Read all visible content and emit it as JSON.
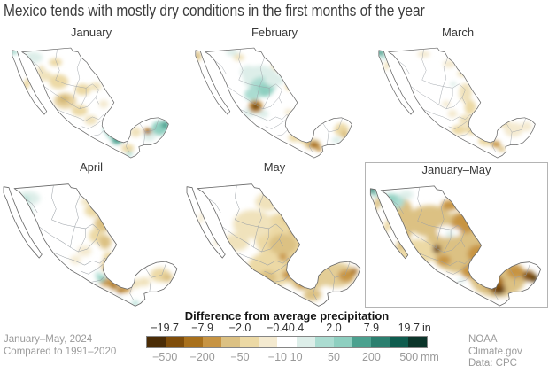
{
  "title": "Mexico tends with mostly dry conditions in the first months of the year",
  "footer": {
    "period": "January–May, 2024",
    "baseline": "Compared to 1991–2020",
    "credit": "NOAA Climate.gov",
    "source": "Data: CPC"
  },
  "legend": {
    "title": "Difference from average precipitation",
    "unit_in": "in",
    "unit_mm": "mm",
    "colors": [
      "#4a2c06",
      "#7f4d0a",
      "#a8701c",
      "#c79443",
      "#dcc183",
      "#ecd9a5",
      "#f4ead0",
      "#ffffff",
      "#ddeee9",
      "#abdcd1",
      "#8ecfc0",
      "#4ba18f",
      "#2b7f6f",
      "#0e5c4e",
      "#0b352a"
    ],
    "ticks": [
      {
        "in": "−19.7",
        "mm": "−500",
        "pct": 6.67
      },
      {
        "in": "−7.9",
        "mm": "−200",
        "pct": 20
      },
      {
        "in": "−2.0",
        "mm": "−50",
        "pct": 33.33
      },
      {
        "in": "−0.4",
        "mm": "−10",
        "pct": 46.67
      },
      {
        "in": "0.4",
        "mm": "10",
        "pct": 53.33
      },
      {
        "in": "2.0",
        "mm": "50",
        "pct": 66.67
      },
      {
        "in": "7.9",
        "mm": "200",
        "pct": 80
      },
      {
        "in": "19.7",
        "mm": "500",
        "pct": 93.33
      }
    ]
  },
  "panels": [
    {
      "label": "January",
      "slug": "january",
      "highlighted": false,
      "blobs": [
        [
          30,
          22,
          12,
          7,
          0,
          "#ddeee9"
        ],
        [
          6,
          15,
          4,
          3,
          0,
          "#8ecfc0"
        ],
        [
          58,
          28,
          8,
          5,
          0,
          "#ecd9a5"
        ],
        [
          45,
          45,
          9,
          6,
          0,
          "#f0e2bb"
        ],
        [
          62,
          52,
          12,
          9,
          0,
          "#ecd9a5"
        ],
        [
          70,
          76,
          14,
          10,
          0,
          "#e8d3a0"
        ],
        [
          68,
          74,
          7,
          5,
          0,
          "#d4b876"
        ],
        [
          92,
          62,
          10,
          7,
          0,
          "#ecd9a5"
        ],
        [
          108,
          58,
          7,
          5,
          0,
          "#f0e2bb"
        ],
        [
          88,
          88,
          10,
          7,
          0,
          "#ecd9a5"
        ],
        [
          102,
          100,
          8,
          6,
          0,
          "#f0e2bb"
        ],
        [
          118,
          80,
          6,
          5,
          0,
          "#f4ead0"
        ],
        [
          22,
          55,
          4,
          9,
          30,
          "#ecd9a5"
        ],
        [
          40,
          38,
          5,
          6,
          0,
          "#f0e2bb"
        ],
        [
          128,
          118,
          6,
          5,
          0,
          "#8ecfc0"
        ],
        [
          135,
          125,
          7,
          5,
          0,
          "#4ba18f"
        ],
        [
          122,
          112,
          5,
          4,
          0,
          "#abdcd1"
        ],
        [
          158,
          115,
          7,
          6,
          0,
          "#f0e2bb"
        ],
        [
          188,
          110,
          10,
          9,
          0,
          "#8ecfc0"
        ],
        [
          195,
          106,
          5,
          5,
          0,
          "#4ba18f"
        ],
        [
          175,
          120,
          8,
          6,
          0,
          "#ddeee9"
        ],
        [
          173,
          114,
          5,
          4,
          0,
          "#a8701c"
        ],
        [
          148,
          135,
          8,
          5,
          0,
          "#ecd9a5"
        ],
        [
          150,
          142,
          4,
          3,
          0,
          "#abdcd1"
        ]
      ]
    },
    {
      "label": "February",
      "slug": "february",
      "highlighted": false,
      "blobs": [
        [
          85,
          48,
          22,
          16,
          0,
          "#ddeee9"
        ],
        [
          88,
          58,
          16,
          12,
          0,
          "#abdcd1"
        ],
        [
          90,
          63,
          10,
          8,
          0,
          "#8ecfc0"
        ],
        [
          75,
          68,
          10,
          8,
          0,
          "#abdcd1"
        ],
        [
          102,
          50,
          12,
          8,
          0,
          "#ddeee9"
        ],
        [
          70,
          40,
          10,
          8,
          0,
          "#ddeee9"
        ],
        [
          50,
          16,
          8,
          4,
          0,
          "#ddeee9"
        ],
        [
          72,
          90,
          8,
          6,
          0,
          "#ddeee9"
        ],
        [
          88,
          92,
          7,
          5,
          0,
          "#ddeee9"
        ],
        [
          79,
          83,
          9,
          8,
          0,
          "#c79443"
        ],
        [
          79,
          83,
          6,
          5,
          0,
          "#a8701c"
        ],
        [
          79,
          83,
          3.5,
          3.5,
          0,
          "#5e3708"
        ],
        [
          7,
          20,
          4,
          6,
          0,
          "#dcc183"
        ],
        [
          108,
          32,
          9,
          6,
          0,
          "#ecd9a5"
        ],
        [
          122,
          58,
          6,
          5,
          0,
          "#ecd9a5"
        ],
        [
          58,
          22,
          7,
          4,
          0,
          "#f0e2bb"
        ],
        [
          120,
          90,
          5,
          4,
          0,
          "#f4ead0"
        ],
        [
          128,
          122,
          8,
          5,
          0,
          "#ecd9a5"
        ],
        [
          140,
          126,
          6,
          4,
          0,
          "#ecd9a5"
        ],
        [
          150,
          130,
          10,
          6,
          0,
          "#dcc183"
        ],
        [
          152,
          131,
          6,
          4,
          0,
          "#a8701c"
        ],
        [
          158,
          136,
          4,
          3,
          0,
          "#c79443"
        ],
        [
          186,
          112,
          9,
          8,
          0,
          "#ecd9a5"
        ],
        [
          190,
          118,
          5,
          5,
          0,
          "#dcc183"
        ],
        [
          180,
          125,
          6,
          4,
          0,
          "#ddeee9"
        ]
      ]
    },
    {
      "label": "March",
      "slug": "march",
      "highlighted": false,
      "blobs": [
        [
          6,
          16,
          5,
          4,
          0,
          "#4ba18f"
        ],
        [
          10,
          21,
          4,
          3,
          0,
          "#abdcd1"
        ],
        [
          14,
          32,
          3,
          6,
          20,
          "#f0e2bb"
        ],
        [
          60,
          18,
          8,
          4,
          0,
          "#f4ead0"
        ],
        [
          92,
          30,
          8,
          5,
          0,
          "#f4ead0"
        ],
        [
          108,
          42,
          6,
          4,
          0,
          "#f0e2bb"
        ],
        [
          112,
          66,
          8,
          12,
          0,
          "#f0e2bb"
        ],
        [
          118,
          84,
          7,
          9,
          0,
          "#ecd9a5"
        ],
        [
          112,
          100,
          8,
          7,
          0,
          "#f0e2bb"
        ],
        [
          104,
          112,
          9,
          6,
          0,
          "#ecd9a5"
        ],
        [
          120,
          112,
          8,
          6,
          0,
          "#ecd9a5"
        ],
        [
          96,
          92,
          6,
          5,
          0,
          "#f4ead0"
        ],
        [
          88,
          80,
          5,
          4,
          0,
          "#f4ead0"
        ],
        [
          97,
          55,
          4,
          3,
          0,
          "#ddeee9"
        ],
        [
          118,
          135,
          5,
          3,
          0,
          "#ddeee9"
        ],
        [
          138,
          126,
          10,
          6,
          0,
          "#ecd9a5"
        ],
        [
          150,
          130,
          6,
          4,
          0,
          "#c79443"
        ],
        [
          157,
          136,
          5,
          3,
          0,
          "#dcc183"
        ],
        [
          172,
          112,
          12,
          9,
          0,
          "#f4ead0"
        ],
        [
          160,
          104,
          7,
          5,
          0,
          "#f0e2bb"
        ],
        [
          188,
          108,
          7,
          6,
          0,
          "#f4ead0"
        ]
      ]
    },
    {
      "label": "April",
      "slug": "april",
      "highlighted": false,
      "blobs": [
        [
          32,
          26,
          13,
          8,
          0,
          "#ddeee9"
        ],
        [
          29,
          27,
          4,
          3,
          0,
          "#abdcd1"
        ],
        [
          33,
          40,
          3,
          3,
          0,
          "#abdcd1"
        ],
        [
          98,
          30,
          7,
          4,
          0,
          "#f0e2bb"
        ],
        [
          105,
          40,
          10,
          7,
          0,
          "#ecd9a5"
        ],
        [
          115,
          55,
          9,
          9,
          0,
          "#dcc183"
        ],
        [
          108,
          68,
          8,
          8,
          0,
          "#ecd9a5"
        ],
        [
          118,
          75,
          7,
          8,
          0,
          "#dcc183"
        ],
        [
          122,
          92,
          6,
          6,
          0,
          "#ecd9a5"
        ],
        [
          120,
          102,
          6,
          7,
          0,
          "#dcc183"
        ],
        [
          95,
          85,
          8,
          6,
          0,
          "#f4ead0"
        ],
        [
          85,
          95,
          6,
          5,
          0,
          "#f4ead0"
        ],
        [
          120,
          120,
          8,
          5,
          0,
          "#c79443"
        ],
        [
          128,
          124,
          5,
          4,
          0,
          "#a8701c"
        ],
        [
          140,
          128,
          7,
          4,
          0,
          "#c79443"
        ],
        [
          135,
          130,
          4,
          3,
          0,
          "#a8701c"
        ],
        [
          114,
          116,
          5,
          4,
          0,
          "#8ecfc0"
        ],
        [
          110,
          112,
          3,
          3,
          0,
          "#abdcd1"
        ],
        [
          133,
          140,
          5,
          3,
          0,
          "#ddeee9"
        ],
        [
          152,
          144,
          4,
          3,
          0,
          "#abdcd1"
        ],
        [
          152,
          122,
          6,
          5,
          0,
          "#f0e2bb"
        ],
        [
          162,
          120,
          7,
          5,
          0,
          "#f0e2bb"
        ],
        [
          180,
          112,
          11,
          8,
          0,
          "#ecd9a5"
        ],
        [
          188,
          115,
          6,
          5,
          0,
          "#dcc183"
        ]
      ]
    },
    {
      "label": "May",
      "slug": "may",
      "highlighted": false,
      "blobs": [
        [
          115,
          70,
          34,
          28,
          0,
          "#ecd9a5"
        ],
        [
          100,
          105,
          28,
          20,
          0,
          "#ecd9a5"
        ],
        [
          140,
          112,
          24,
          18,
          0,
          "#e3cd96"
        ],
        [
          78,
          55,
          22,
          16,
          0,
          "#f0e2bb"
        ],
        [
          172,
          112,
          22,
          14,
          0,
          "#e3cd96"
        ],
        [
          95,
          30,
          14,
          10,
          0,
          "#f0e2bb"
        ],
        [
          110,
          32,
          8,
          5,
          0,
          "#ecd9a5"
        ],
        [
          60,
          75,
          14,
          10,
          0,
          "#f0e2bb"
        ],
        [
          112,
          78,
          16,
          12,
          0,
          "#dcc183"
        ],
        [
          128,
          100,
          13,
          10,
          0,
          "#dcc183"
        ],
        [
          95,
          115,
          10,
          8,
          0,
          "#dcc183"
        ],
        [
          120,
          48,
          9,
          7,
          0,
          "#dcc183"
        ],
        [
          183,
          113,
          9,
          7,
          0,
          "#c79443"
        ],
        [
          118,
          112,
          7,
          5,
          0,
          "#c79443"
        ],
        [
          133,
          122,
          7,
          5,
          0,
          "#c79443"
        ],
        [
          148,
          133,
          7,
          4,
          0,
          "#c79443"
        ],
        [
          145,
          135,
          10,
          6,
          0,
          "#dcc183"
        ],
        [
          112,
          92,
          5,
          4,
          0,
          "#c79443"
        ],
        [
          125,
          62,
          5,
          4,
          0,
          "#c79443"
        ],
        [
          192,
          108,
          4,
          4,
          0,
          "#a8701c"
        ],
        [
          20,
          48,
          3,
          7,
          25,
          "#f4ead0"
        ],
        [
          38,
          75,
          3,
          5,
          30,
          "#f4ead0"
        ]
      ]
    },
    {
      "label": "January–May",
      "slug": "january-may",
      "highlighted": true,
      "blobs": [
        [
          110,
          75,
          42,
          35,
          0,
          "#dcc183"
        ],
        [
          150,
          115,
          32,
          22,
          0,
          "#dcc183"
        ],
        [
          72,
          50,
          26,
          18,
          0,
          "#dcc183"
        ],
        [
          58,
          85,
          22,
          14,
          0,
          "#ecd9a5"
        ],
        [
          40,
          40,
          12,
          16,
          0,
          "#dcc183"
        ],
        [
          46,
          62,
          6,
          14,
          20,
          "#dcc183"
        ],
        [
          12,
          30,
          4,
          8,
          25,
          "#dcc183"
        ],
        [
          24,
          55,
          4,
          9,
          30,
          "#ecd9a5"
        ],
        [
          38,
          78,
          4,
          7,
          30,
          "#dcc183"
        ],
        [
          112,
          52,
          15,
          12,
          0,
          "#c79443"
        ],
        [
          95,
          32,
          10,
          6,
          0,
          "#c79443"
        ],
        [
          128,
          88,
          13,
          11,
          0,
          "#c79443"
        ],
        [
          118,
          108,
          10,
          8,
          0,
          "#c79443"
        ],
        [
          88,
          95,
          8,
          6,
          0,
          "#c79443"
        ],
        [
          145,
          120,
          12,
          8,
          0,
          "#a8701c"
        ],
        [
          170,
          108,
          10,
          8,
          0,
          "#c79443"
        ],
        [
          122,
          42,
          6,
          5,
          0,
          "#a8701c"
        ],
        [
          135,
          95,
          6,
          5,
          0,
          "#a8701c"
        ],
        [
          150,
          128,
          9,
          6,
          0,
          "#7f4d0a"
        ],
        [
          185,
          113,
          7,
          6,
          0,
          "#7f4d0a"
        ],
        [
          80,
          82,
          5,
          5,
          0,
          "#7f4d0a"
        ],
        [
          192,
          116,
          4,
          4,
          0,
          "#4a2c06"
        ],
        [
          152,
          131,
          4,
          3,
          0,
          "#4a2c06"
        ],
        [
          80,
          83,
          2.5,
          2.5,
          0,
          "#4a2c06"
        ],
        [
          6,
          15,
          5,
          4,
          0,
          "#2b7f6f"
        ],
        [
          10,
          19,
          4,
          3,
          0,
          "#8ecfc0"
        ],
        [
          30,
          28,
          13,
          9,
          0,
          "#abdcd1"
        ],
        [
          27,
          24,
          7,
          5,
          0,
          "#8ecfc0"
        ],
        [
          45,
          20,
          8,
          5,
          0,
          "#ddeee9"
        ],
        [
          90,
          62,
          10,
          7,
          0,
          "#ffffff"
        ],
        [
          100,
          63,
          7,
          5,
          0,
          "#ffffff"
        ],
        [
          95,
          65,
          5,
          4,
          0,
          "#ddeee9"
        ],
        [
          108,
          118,
          4,
          3,
          0,
          "#ddeee9"
        ],
        [
          135,
          110,
          4,
          3,
          0,
          "#ddeee9"
        ]
      ]
    }
  ]
}
